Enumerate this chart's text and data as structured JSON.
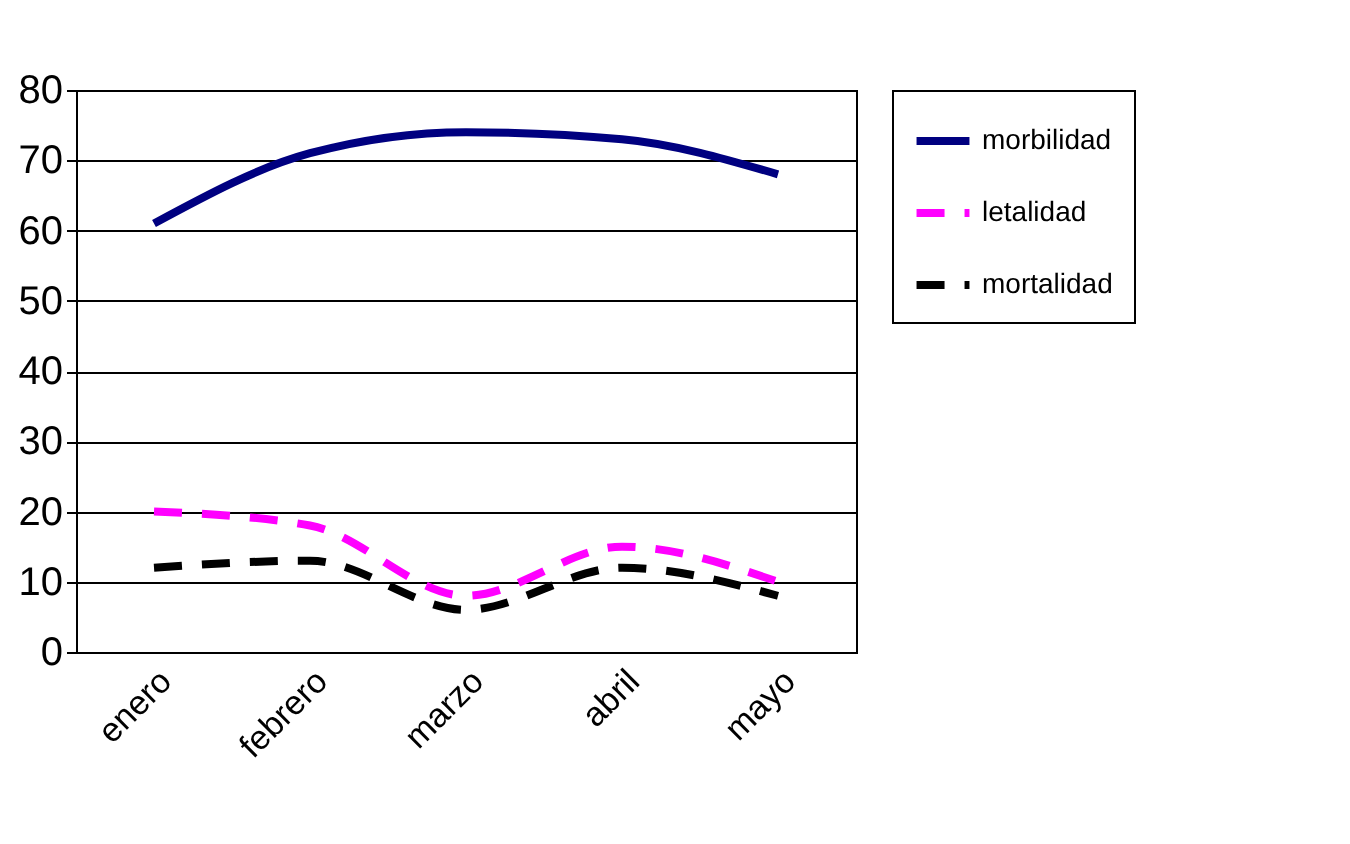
{
  "chart_data": {
    "type": "line",
    "categories": [
      "enero",
      "febrero",
      "marzo",
      "abril",
      "mayo"
    ],
    "series": [
      {
        "name": "morbilidad",
        "color": "#000080",
        "line_style": "solid",
        "values": [
          61,
          71,
          74,
          73,
          68
        ]
      },
      {
        "name": "letalidad",
        "color": "#ff00ff",
        "line_style": "dashed",
        "values": [
          20,
          18,
          8,
          15,
          10
        ]
      },
      {
        "name": "mortalidad",
        "color": "#000000",
        "line_style": "dashed",
        "values": [
          12,
          13,
          6,
          12,
          8
        ]
      }
    ],
    "ylim": [
      0,
      80
    ],
    "yticks": [
      0,
      10,
      20,
      30,
      40,
      50,
      60,
      70,
      80
    ],
    "grid": "y",
    "legend": "top right"
  }
}
